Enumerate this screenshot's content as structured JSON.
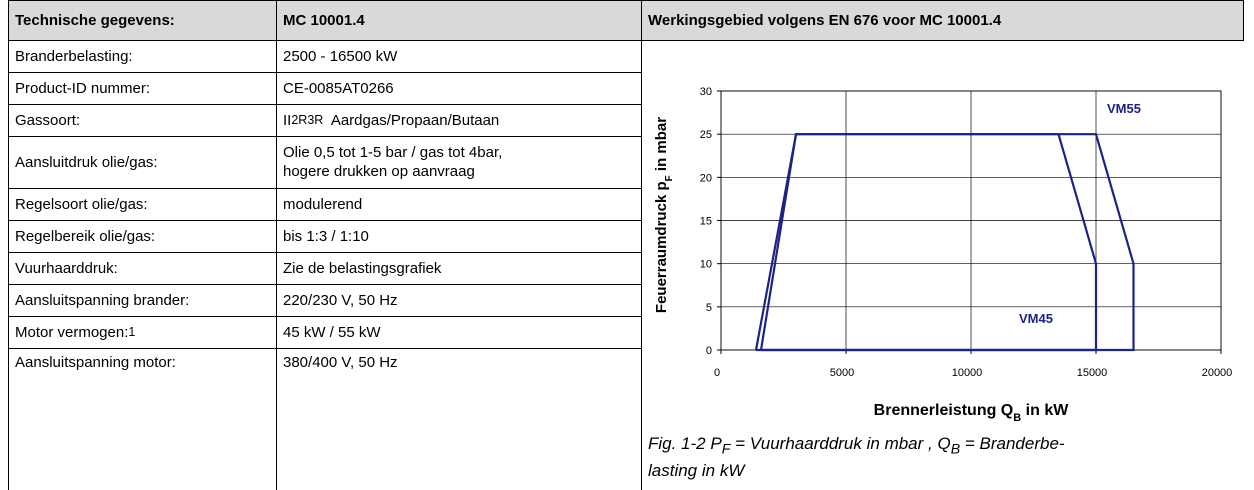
{
  "table": {
    "header": [
      "Technische gegevens:",
      "MC 10001.4",
      "Werkingsgebied volgens EN 676 voor MC 10001.4"
    ],
    "rows": [
      [
        "Branderbelasting:",
        "2500 - 16500 kW"
      ],
      [
        "Product-ID nummer:",
        "CE-0085AT0266"
      ],
      [
        "Gassoort:",
        [
          "II",
          "2R3R",
          "  Aardgas/Propaan/Butaan"
        ]
      ],
      [
        "Aansluitdruk olie/gas:",
        [
          "Olie 0,5 tot 1-5 bar / gas tot 4bar,",
          "hogere drukken op aanvraag"
        ]
      ],
      [
        "Regelsoort olie/gas:",
        "modulerend"
      ],
      [
        "Regelbereik olie/gas:",
        "bis 1:3 / 1:10"
      ],
      [
        "Vuurhaarddruk:",
        "Zie de belastingsgrafiek"
      ],
      [
        "Aansluitspanning brander:",
        "220/230 V, 50 Hz"
      ],
      [
        [
          "Motor vermogen:",
          "1"
        ],
        "45  kW / 55 kW"
      ],
      [
        "Aansluitspanning motor:",
        "380/400 V, 50 Hz"
      ]
    ]
  },
  "chart_data": {
    "type": "line",
    "x_label": [
      "Brennerleistung Q",
      "B",
      " in kW"
    ],
    "y_label": [
      "Feuerraumdruck p",
      "F",
      " in mbar"
    ],
    "xlim": [
      0,
      20000
    ],
    "xticks": [
      0,
      5000,
      10000,
      15000,
      20000
    ],
    "ylim": [
      0,
      30
    ],
    "yticks": [
      0,
      5,
      10,
      15,
      20,
      25,
      30
    ],
    "grid": true,
    "series": [
      {
        "name": "VM55",
        "color": "#1c2388",
        "x": [
          1600,
          3000,
          15000,
          16500,
          16500,
          1600
        ],
        "values": [
          0,
          25,
          25,
          10,
          0,
          0
        ]
      },
      {
        "name": "VM45",
        "color": "#1c2388",
        "x": [
          1400,
          3000,
          13500,
          15000,
          15000,
          1400
        ],
        "values": [
          0,
          25,
          25,
          10,
          0,
          0
        ]
      }
    ]
  },
  "caption": [
    "Fig. 1-2 P",
    "F",
    " = Vuurhaarddruk in mbar , Q",
    "B",
    " = Branderbe-",
    "lasting in kW"
  ]
}
